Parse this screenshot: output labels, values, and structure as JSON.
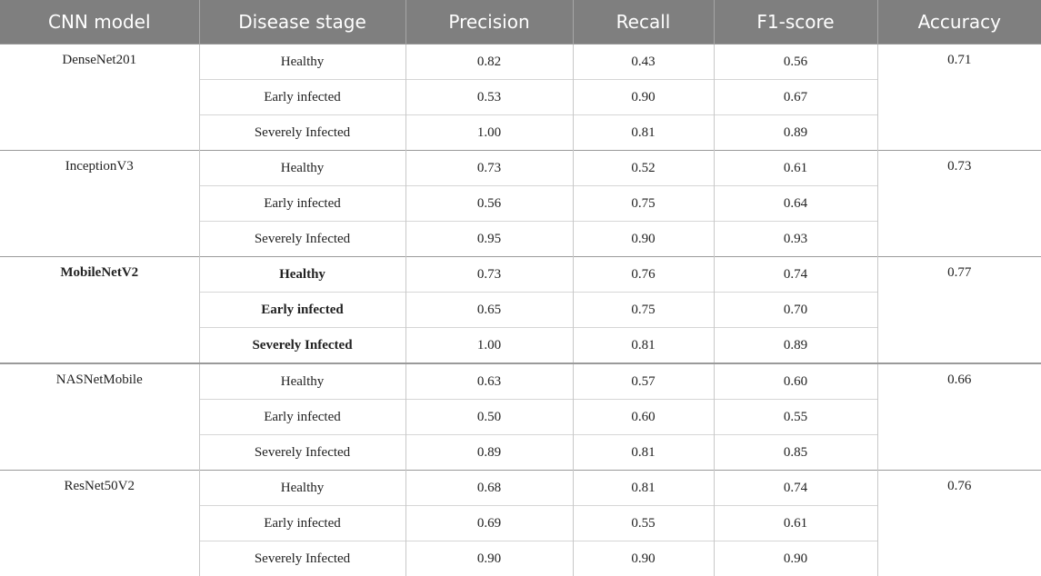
{
  "table": {
    "headers": [
      "CNN model",
      "Disease stage",
      "Precision",
      "Recall",
      "F1-score",
      "Accuracy"
    ],
    "groups": [
      {
        "model": "DenseNet201",
        "accuracy": "0.71",
        "bold": false,
        "rows": [
          {
            "stage": "Healthy",
            "precision": "0.82",
            "recall": "0.43",
            "f1": "0.56"
          },
          {
            "stage": "Early infected",
            "precision": "0.53",
            "recall": "0.90",
            "f1": "0.67"
          },
          {
            "stage": "Severely Infected",
            "precision": "1.00",
            "recall": "0.81",
            "f1": "0.89"
          }
        ]
      },
      {
        "model": "InceptionV3",
        "accuracy": "0.73",
        "bold": false,
        "rows": [
          {
            "stage": "Healthy",
            "precision": "0.73",
            "recall": "0.52",
            "f1": "0.61"
          },
          {
            "stage": "Early infected",
            "precision": "0.56",
            "recall": "0.75",
            "f1": "0.64"
          },
          {
            "stage": "Severely Infected",
            "precision": "0.95",
            "recall": "0.90",
            "f1": "0.93"
          }
        ]
      },
      {
        "model": "MobileNetV2",
        "accuracy": "0.77",
        "bold": true,
        "rows": [
          {
            "stage": "Healthy",
            "precision": "0.73",
            "recall": "0.76",
            "f1": "0.74"
          },
          {
            "stage": "Early infected",
            "precision": "0.65",
            "recall": "0.75",
            "f1": "0.70"
          },
          {
            "stage": "Severely Infected",
            "precision": "1.00",
            "recall": "0.81",
            "f1": "0.89"
          }
        ]
      },
      {
        "model": "NASNetMobile",
        "accuracy": "0.66",
        "bold": false,
        "rows": [
          {
            "stage": "Healthy",
            "precision": "0.63",
            "recall": "0.57",
            "f1": "0.60"
          },
          {
            "stage": "Early infected",
            "precision": "0.50",
            "recall": "0.60",
            "f1": "0.55"
          },
          {
            "stage": "Severely Infected",
            "precision": "0.89",
            "recall": "0.81",
            "f1": "0.85"
          }
        ]
      },
      {
        "model": "ResNet50V2",
        "accuracy": "0.76",
        "bold": false,
        "rows": [
          {
            "stage": "Healthy",
            "precision": "0.68",
            "recall": "0.81",
            "f1": "0.74"
          },
          {
            "stage": "Early infected",
            "precision": "0.69",
            "recall": "0.55",
            "f1": "0.61"
          },
          {
            "stage": "Severely Infected",
            "precision": "0.90",
            "recall": "0.90",
            "f1": "0.90"
          }
        ]
      }
    ]
  }
}
